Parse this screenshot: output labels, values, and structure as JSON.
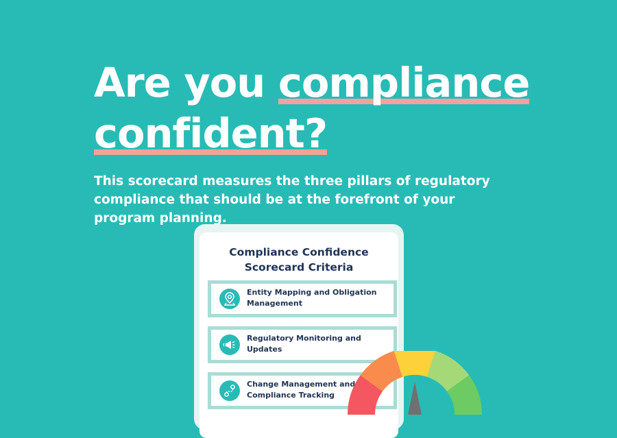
{
  "headline": {
    "line1_prefix": "Are you",
    "line1_highlight": "compliance",
    "line2_highlight": "confident?",
    "highlight_color": "#f4a39a"
  },
  "subtitle": "This scorecard measures the three pillars of regulatory compliance that should be at the forefront of your program planning.",
  "scorecard": {
    "title_line1": "Compliance Confidence",
    "title_line2": "Scorecard Criteria",
    "criteria": [
      {
        "icon": "map-pin-icon",
        "line1": "Entity Mapping and Obligation",
        "line2": "Management"
      },
      {
        "icon": "megaphone-icon",
        "line1": "Regulatory Monitoring and",
        "line2": "Updates"
      },
      {
        "icon": "route-icon",
        "line1": "Change Management and",
        "line2": "Compliance Tracking"
      }
    ]
  },
  "gauge": {
    "segment_colors": [
      "#f4575f",
      "#f98b4c",
      "#fdd13a",
      "#a5d977",
      "#6ccb62"
    ],
    "needle_color": "#707070"
  },
  "colors": {
    "background": "#28bbb5",
    "card_text": "#1f3454",
    "criterion_border": "#a9dcd4"
  }
}
